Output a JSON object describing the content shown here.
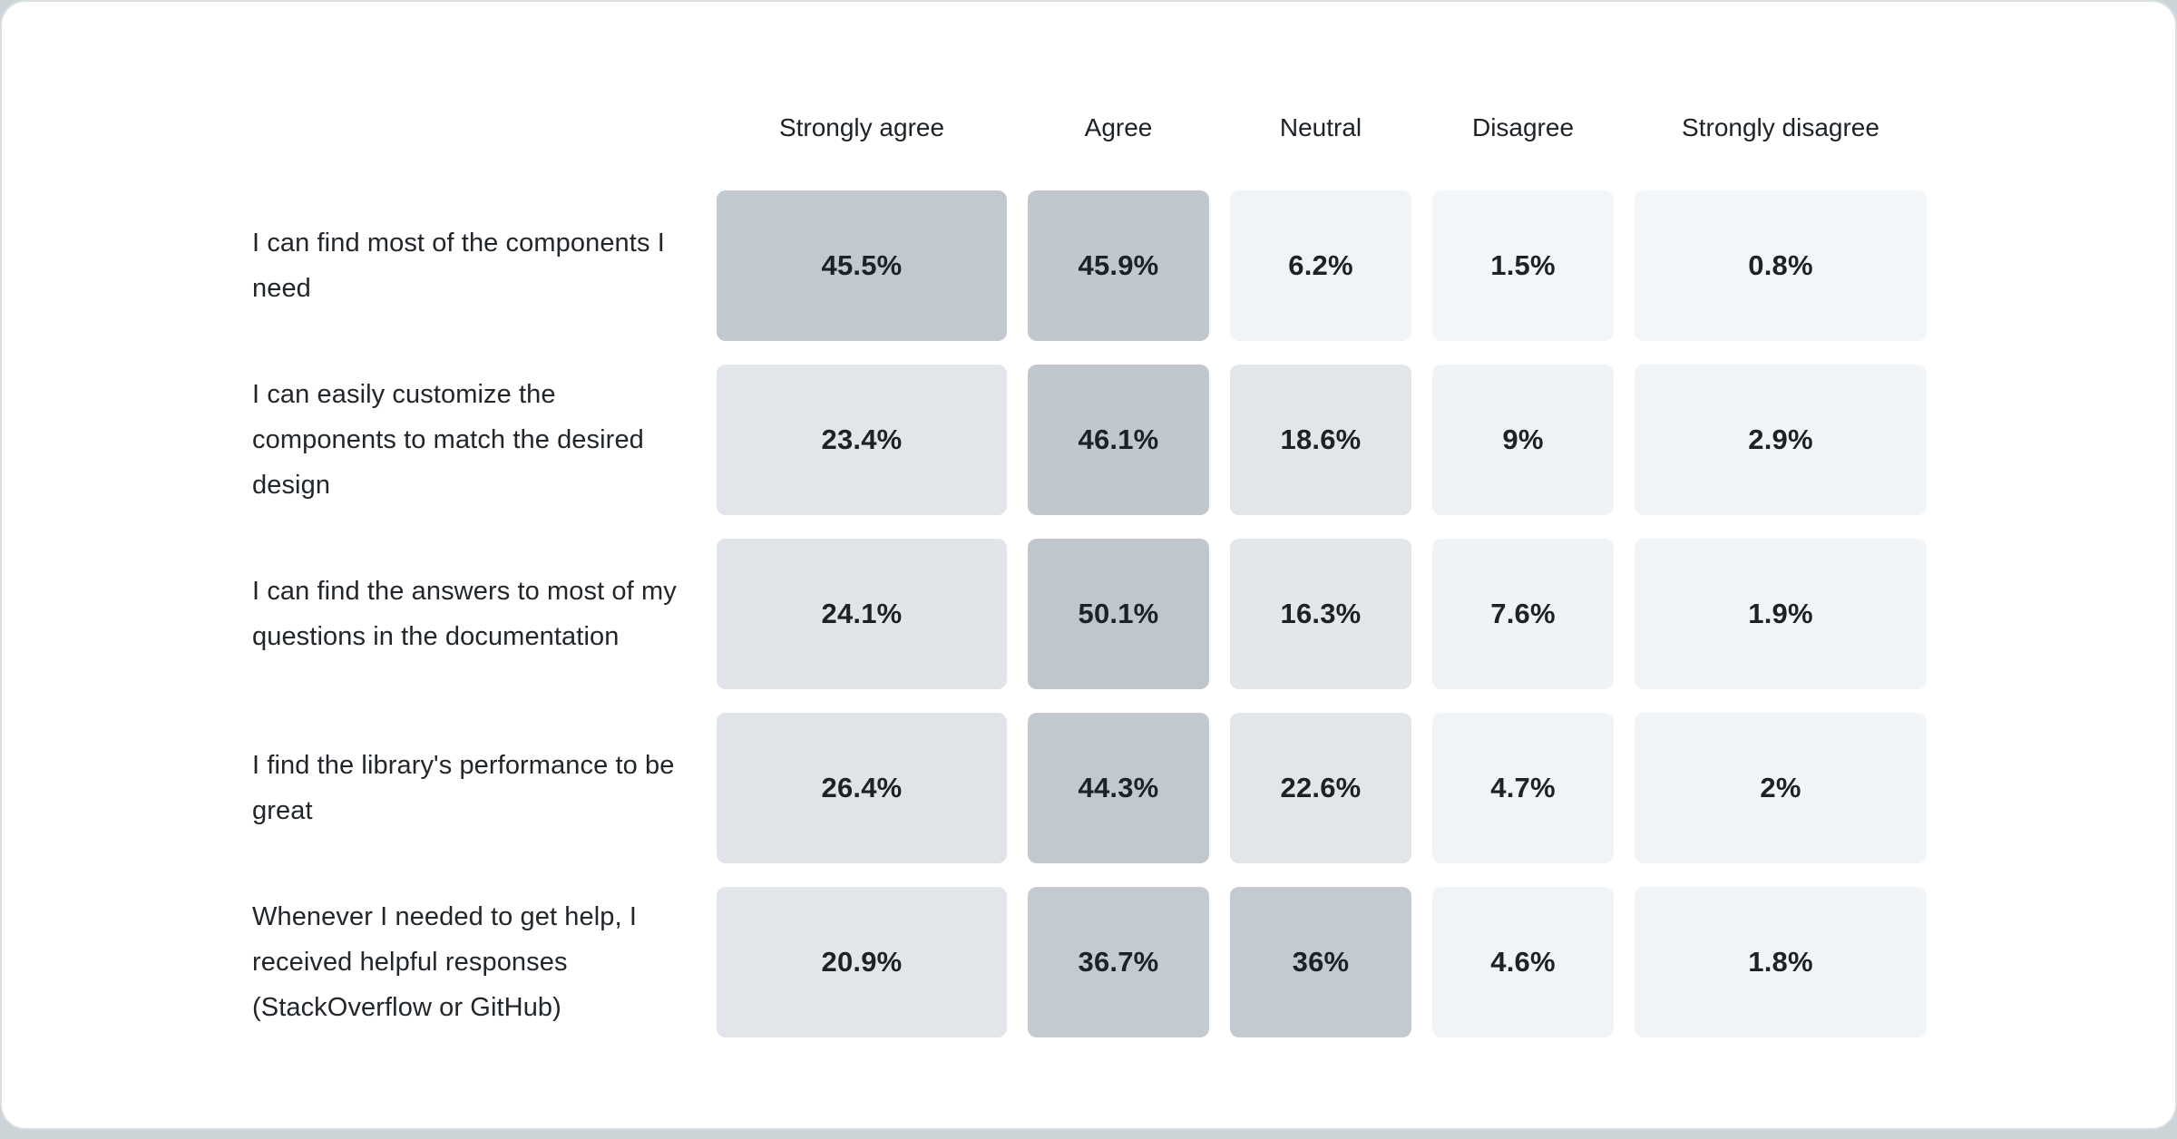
{
  "page": {
    "background": "#ccd4d7",
    "card_background": "#ffffff",
    "card_border": "#d9dee1",
    "text_color": "#1d2227"
  },
  "chart_data": {
    "type": "heatmap",
    "title": "",
    "columns": [
      "Strongly agree",
      "Agree",
      "Neutral",
      "Disagree",
      "Strongly disagree"
    ],
    "rows": [
      {
        "label": "I can find most of the components I need",
        "values": [
          45.5,
          45.9,
          6.2,
          1.5,
          0.8
        ],
        "display": [
          "45.5%",
          "45.9%",
          "6.2%",
          "1.5%",
          "0.8%"
        ]
      },
      {
        "label": "I can easily customize the components to match the desired design",
        "values": [
          23.4,
          46.1,
          18.6,
          9,
          2.9
        ],
        "display": [
          "23.4%",
          "46.1%",
          "18.6%",
          "9%",
          "2.9%"
        ]
      },
      {
        "label": "I can find the answers to most of my questions in the documentation",
        "values": [
          24.1,
          50.1,
          16.3,
          7.6,
          1.9
        ],
        "display": [
          "24.1%",
          "50.1%",
          "16.3%",
          "7.6%",
          "1.9%"
        ]
      },
      {
        "label": "I find the library's performance to be great",
        "values": [
          26.4,
          44.3,
          22.6,
          4.7,
          2
        ],
        "display": [
          "26.4%",
          "44.3%",
          "22.6%",
          "4.7%",
          "2%"
        ]
      },
      {
        "label": "Whenever I needed to get help, I received helpful responses (StackOverflow or GitHub)",
        "values": [
          20.9,
          36.7,
          36,
          4.6,
          1.8
        ],
        "display": [
          "20.9%",
          "36.7%",
          "36%",
          "4.6%",
          "1.8%"
        ]
      }
    ],
    "value_unit": "%",
    "value_range": [
      0,
      50.1
    ],
    "legend_position": "none",
    "grid": false,
    "color_scale": {
      "stops": [
        [
          0,
          "#f3f6f9"
        ],
        [
          3,
          "#f2f5f8"
        ],
        [
          9,
          "#f0f3f6"
        ],
        [
          16,
          "#e3e7eb"
        ],
        [
          26,
          "#e1e5e9"
        ],
        [
          36,
          "#c4cad1"
        ],
        [
          44,
          "#c2c8cf"
        ],
        [
          50.1,
          "#c0c6cd"
        ]
      ]
    }
  }
}
